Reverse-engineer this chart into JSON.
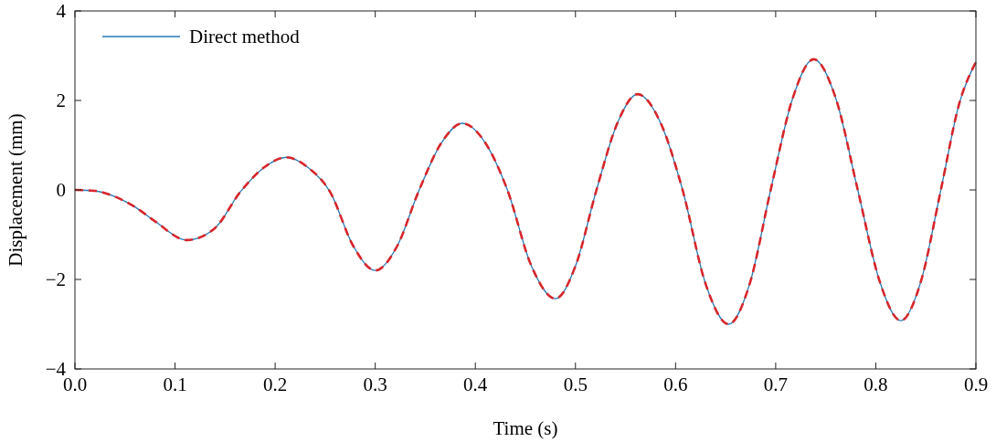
{
  "chart_data": {
    "type": "line",
    "xlabel": "Time (s)",
    "ylabel": "Displacement (mm)",
    "xlim": [
      0,
      0.9
    ],
    "ylim": [
      -4,
      4
    ],
    "xticks": [
      {
        "value": 0,
        "label": "0.0"
      },
      0.1,
      0.2,
      0.3,
      0.4,
      0.5,
      0.6,
      0.7,
      0.8,
      0.9
    ],
    "yticks": [
      {
        "value": -4,
        "label": "−4"
      },
      {
        "value": -2,
        "label": "−2"
      },
      0,
      2,
      4
    ],
    "grid": false,
    "legend": "top left",
    "series": [
      {
        "name": "Direct method",
        "color": "#2878b5",
        "line_style": "solid",
        "x": [
          0,
          0.02,
          0.04,
          0.06,
          0.08,
          0.112,
          0.14,
          0.165,
          0.19,
          0.211,
          0.233,
          0.255,
          0.278,
          0.3,
          0.322,
          0.343,
          0.366,
          0.387,
          0.41,
          0.432,
          0.456,
          0.48,
          0.5,
          0.521,
          0.542,
          0.562,
          0.585,
          0.607,
          0.63,
          0.653,
          0.674,
          0.695,
          0.717,
          0.738,
          0.76,
          0.782,
          0.804,
          0.825,
          0.845,
          0.865,
          0.883,
          0.9
        ],
        "values": [
          0,
          -0.02,
          -0.15,
          -0.38,
          -0.7,
          -1.12,
          -0.85,
          -0.05,
          0.52,
          0.73,
          0.5,
          -0.05,
          -1.25,
          -1.8,
          -1.25,
          -0.05,
          1.05,
          1.49,
          1.05,
          0.0,
          -1.7,
          -2.43,
          -1.7,
          0.0,
          1.5,
          2.14,
          1.5,
          0.0,
          -2.1,
          -3.0,
          -2.1,
          0.0,
          2.05,
          2.92,
          2.05,
          0.0,
          -2.05,
          -2.92,
          -2.05,
          0.0,
          1.9,
          2.86
        ]
      },
      {
        "color": "#d7262b",
        "line_style": "dashed",
        "x": [
          0,
          0.02,
          0.04,
          0.06,
          0.08,
          0.112,
          0.14,
          0.165,
          0.19,
          0.211,
          0.233,
          0.255,
          0.278,
          0.3,
          0.322,
          0.343,
          0.366,
          0.387,
          0.41,
          0.432,
          0.456,
          0.48,
          0.5,
          0.521,
          0.542,
          0.562,
          0.585,
          0.607,
          0.63,
          0.653,
          0.674,
          0.695,
          0.717,
          0.738,
          0.76,
          0.782,
          0.804,
          0.825,
          0.845,
          0.865,
          0.883,
          0.9
        ],
        "values": [
          0,
          -0.02,
          -0.15,
          -0.38,
          -0.7,
          -1.12,
          -0.85,
          -0.05,
          0.52,
          0.73,
          0.5,
          -0.05,
          -1.25,
          -1.8,
          -1.25,
          -0.05,
          1.05,
          1.49,
          1.05,
          0.0,
          -1.7,
          -2.43,
          -1.7,
          0.0,
          1.5,
          2.14,
          1.5,
          0.0,
          -2.1,
          -3.0,
          -2.1,
          0.0,
          2.05,
          2.92,
          2.05,
          0.0,
          -2.05,
          -2.92,
          -2.05,
          0.0,
          1.9,
          2.86
        ]
      }
    ]
  }
}
